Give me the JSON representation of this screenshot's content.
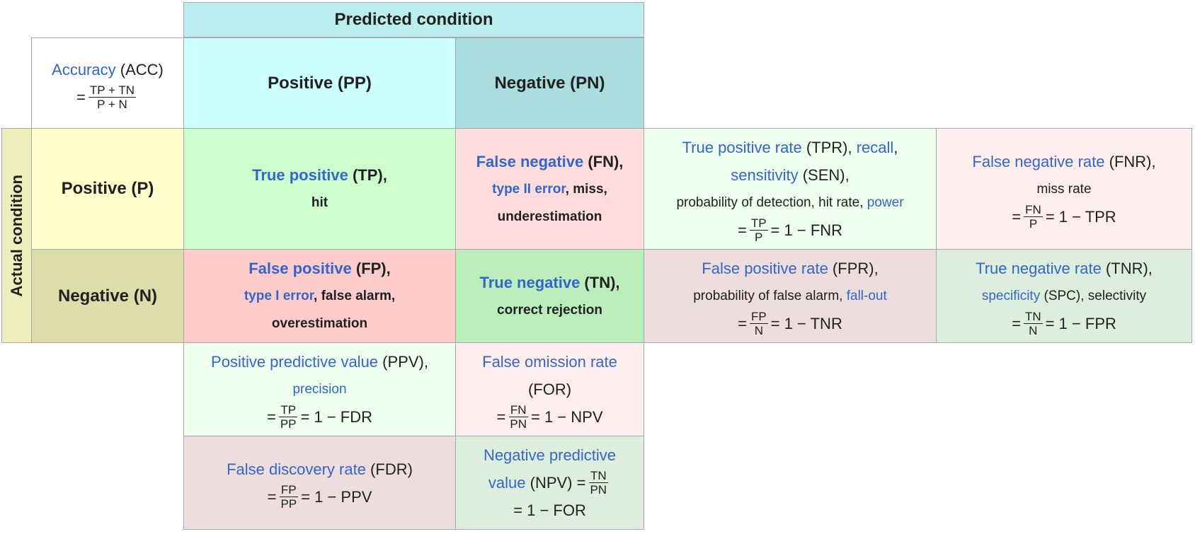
{
  "header": {
    "predicted_condition": "Predicted condition",
    "actual_condition": "Actual condition"
  },
  "accuracy": {
    "term": "Accuracy",
    "abbr": " (ACC)",
    "eq": "=",
    "num": "TP + TN",
    "den": "P + N"
  },
  "predicted": {
    "positive": "Positive (PP)",
    "negative": "Negative (PN)"
  },
  "actual": {
    "positive": "Positive (P)",
    "negative": "Negative (N)"
  },
  "tp": {
    "term": "True positive",
    "abbr": " (TP),",
    "line2": "hit"
  },
  "fn": {
    "term": "False negative",
    "abbr": " (FN),",
    "line2_link": "type II error",
    "line2_rest": ", miss,",
    "line3": "underestimation"
  },
  "fp": {
    "term": "False positive",
    "abbr": " (FP),",
    "line2_link": "type I error",
    "line2_rest": ", false alarm,",
    "line3": "overestimation"
  },
  "tn": {
    "term": "True negative",
    "abbr": " (TN),",
    "line2": "correct rejection"
  },
  "tpr": {
    "term": "True positive rate",
    "abbr": " (TPR), ",
    "recall": "recall",
    "comma": ",",
    "sensitivity": "sensitivity",
    "sen_abbr": " (SEN),",
    "line3_text": "probability of detection, hit rate, ",
    "power": "power",
    "eq": "=",
    "num": "TP",
    "den": "P",
    "rest": "= 1 − FNR"
  },
  "fnr": {
    "term": "False negative rate",
    "abbr": " (FNR),",
    "line2": "miss rate",
    "eq": "=",
    "num": "FN",
    "den": "P",
    "rest": "= 1 − TPR"
  },
  "fpr": {
    "term": "False positive rate",
    "abbr": " (FPR),",
    "line2_text": "probability of false alarm, ",
    "fallout": "fall-out",
    "eq": "=",
    "num": "FP",
    "den": "N",
    "rest": "= 1 − TNR"
  },
  "tnr": {
    "term": "True negative rate",
    "abbr": " (TNR),",
    "specificity": "specificity",
    "line2_rest": " (SPC), selectivity",
    "eq": "=",
    "num": "TN",
    "den": "N",
    "rest": "= 1 − FPR"
  },
  "ppv": {
    "term": "Positive predictive value",
    "abbr": " (PPV),",
    "precision": "precision",
    "eq": "=",
    "num": "TP",
    "den": "PP",
    "rest": "= 1 − FDR"
  },
  "for": {
    "term": "False omission rate",
    "abbr": "(FOR)",
    "eq": "=",
    "num": "FN",
    "den": "PN",
    "rest": "= 1 − NPV"
  },
  "fdr": {
    "term": "False discovery rate",
    "abbr": " (FDR)",
    "eq": "=",
    "num": "FP",
    "den": "PP",
    "rest": "= 1 − PPV"
  },
  "npv": {
    "term1": "Negative predictive",
    "term2": "value",
    "abbr": " (NPV) =",
    "num": "TN",
    "den": "PN",
    "rest": "= 1 − FOR"
  },
  "colors": {
    "link": "#3366cc",
    "predicted_header": "#bbeeee",
    "predicted_positive": "#ccffff",
    "predicted_negative": "#aadddd",
    "actual_header": "#eeeebb",
    "actual_positive": "#ffffcc",
    "actual_negative": "#ddddaa",
    "tp": "#ccffcc",
    "fn": "#ffdddd",
    "fp": "#ffcccc",
    "tn": "#bbeebb",
    "tpr": "#eeffee",
    "fnr": "#ffeeee",
    "fpr": "#eedddd",
    "tnr": "#ddeedd"
  }
}
